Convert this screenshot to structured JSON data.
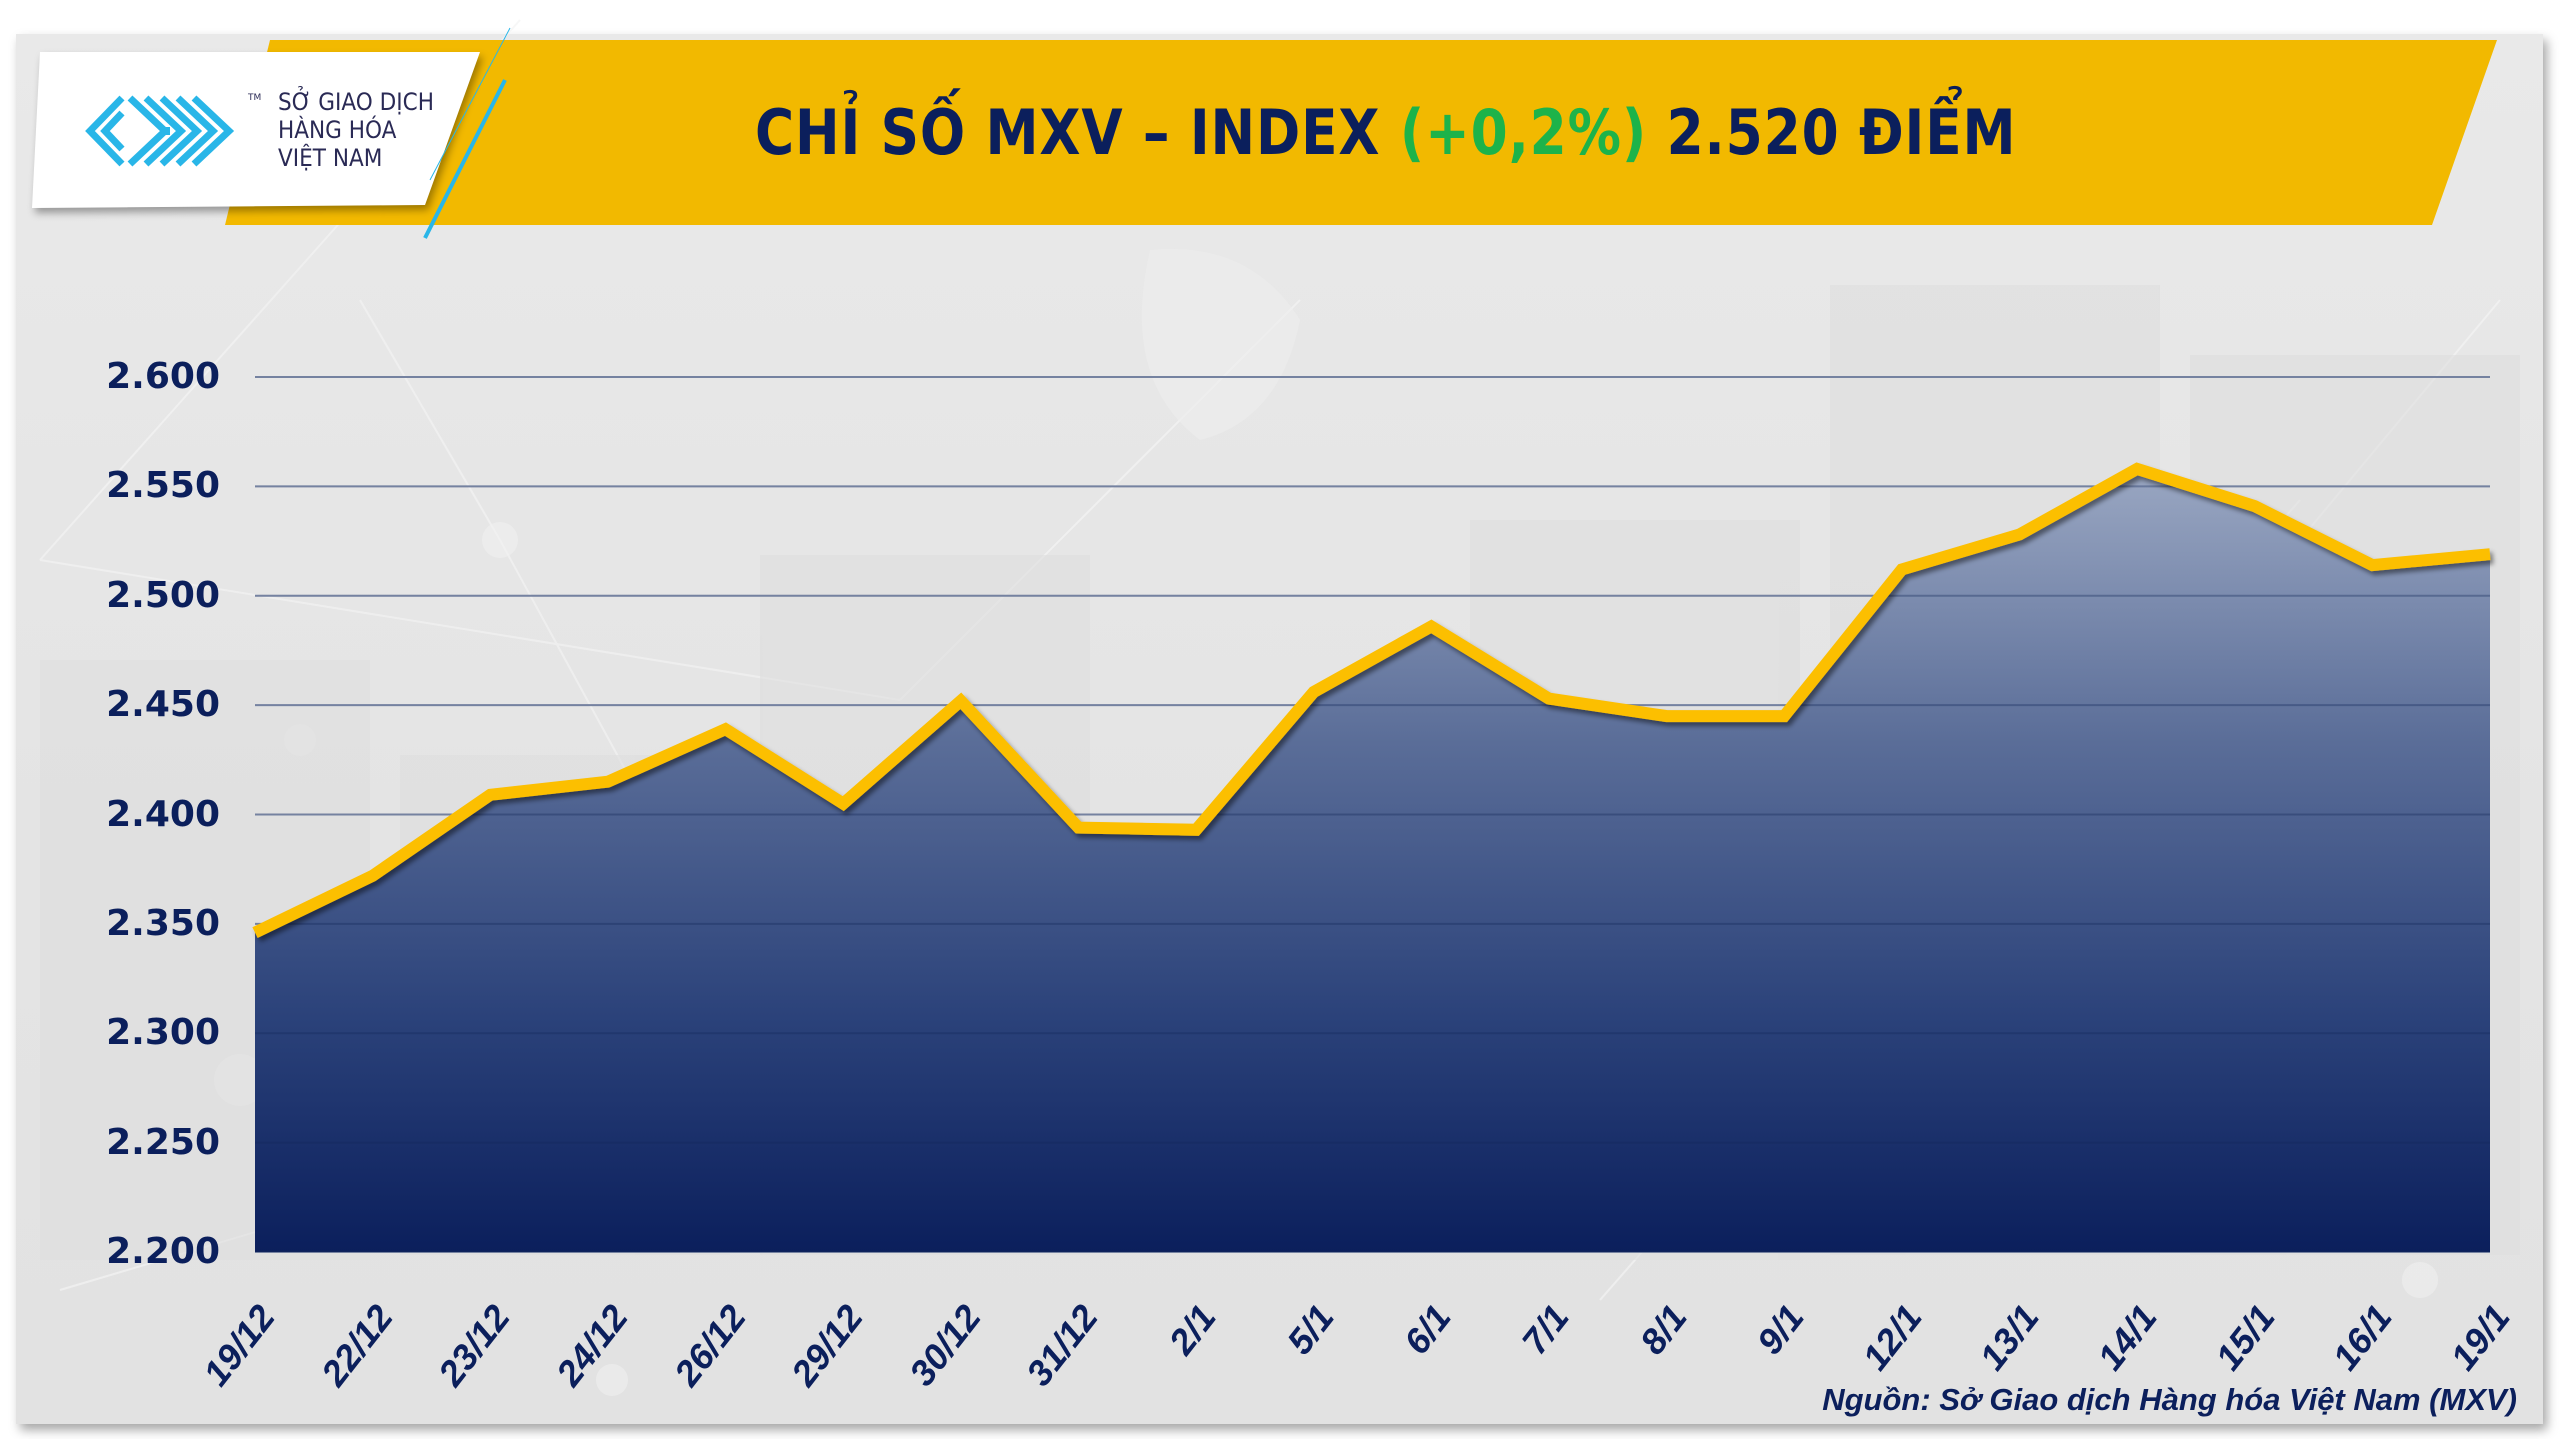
{
  "header": {
    "logo": {
      "icon": "mxv-maze-logo-icon",
      "trademark": "TM",
      "line1": "SỞ GIAO DỊCH",
      "line2": "HÀNG HÓA",
      "line3": "VIỆT NAM"
    },
    "title_prefix": "CHỈ SỐ MXV – INDEX ",
    "title_change": "(+0,2%)",
    "title_suffix": " 2.520 ĐIỂM"
  },
  "colors": {
    "banner_yellow": "#f2b900",
    "title_navy": "#0b1f5c",
    "change_green": "#1db34a",
    "line_gold": "#fcbf00",
    "area_top": "#7f8fb0",
    "area_bottom": "#0b1f5c",
    "logo_blue": "#29b6e8"
  },
  "source": "Nguồn: Sở Giao dịch Hàng hóa Việt Nam (MXV)",
  "chart_data": {
    "type": "area",
    "title": "CHỈ SỐ MXV – INDEX (+0,2%) 2.520 ĐIỂM",
    "xlabel": "",
    "ylabel": "",
    "categories": [
      "19/12",
      "22/12",
      "23/12",
      "24/12",
      "26/12",
      "29/12",
      "30/12",
      "31/12",
      "2/1",
      "5/1",
      "6/1",
      "7/1",
      "8/1",
      "9/1",
      "12/1",
      "13/1",
      "14/1",
      "15/1",
      "16/1",
      "19/1"
    ],
    "values": [
      2346,
      2372,
      2409,
      2415,
      2439,
      2405,
      2452,
      2394,
      2393,
      2456,
      2486,
      2453,
      2445,
      2445,
      2512,
      2528,
      2558,
      2541,
      2514,
      2519
    ],
    "ylim": [
      2200,
      2600
    ],
    "yticks": [
      2200,
      2250,
      2300,
      2350,
      2400,
      2450,
      2500,
      2550,
      2600
    ],
    "ytick_labels": [
      "2.200",
      "2.250",
      "2.300",
      "2.350",
      "2.400",
      "2.450",
      "2.500",
      "2.550",
      "2.600"
    ],
    "grid": "horizontal",
    "legend": "none"
  }
}
